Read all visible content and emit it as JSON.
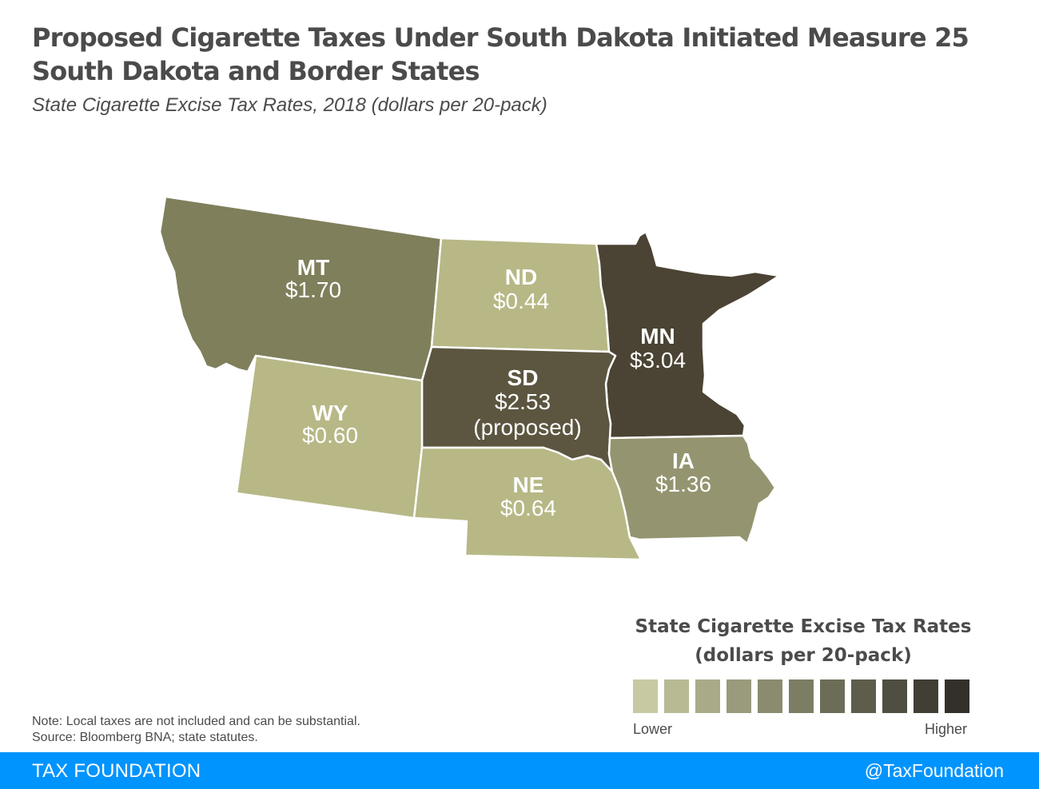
{
  "header": {
    "title_line1": "Proposed Cigarette Taxes Under South Dakota Initiated Measure 25",
    "title_line2": "South Dakota and Border States",
    "subtitle": "State Cigarette Excise Tax Rates, 2018 (dollars per 20-pack)"
  },
  "map": {
    "states": [
      {
        "abbr": "MT",
        "rate": "$1.70",
        "note": "",
        "color": "#807f5c"
      },
      {
        "abbr": "ND",
        "rate": "$0.44",
        "note": "",
        "color": "#b7b886"
      },
      {
        "abbr": "MN",
        "rate": "$3.04",
        "note": "",
        "color": "#4b4333"
      },
      {
        "abbr": "SD",
        "rate": "$2.53",
        "note": "(proposed)",
        "color": "#5c5640"
      },
      {
        "abbr": "WY",
        "rate": "$0.60",
        "note": "",
        "color": "#b7b886"
      },
      {
        "abbr": "NE",
        "rate": "$0.64",
        "note": "",
        "color": "#b7b886"
      },
      {
        "abbr": "IA",
        "rate": "$1.36",
        "note": "",
        "color": "#949570"
      }
    ]
  },
  "legend": {
    "title_line1": "State Cigarette Excise Tax Rates",
    "title_line2": "(dollars per 20-pack)",
    "low_label": "Lower",
    "high_label": "Higher",
    "colors": [
      "#c7c9a2",
      "#b8ba94",
      "#a9ab88",
      "#9a9b7c",
      "#8b8c6f",
      "#7c7d63",
      "#6d6d57",
      "#5e5d4b",
      "#4f4e40",
      "#403e35",
      "#33302a"
    ]
  },
  "notes": {
    "line1": "Note: Local taxes are not included and can be substantial.",
    "line2": "Source: Bloomberg BNA; state statutes."
  },
  "footer": {
    "brand": "TAX FOUNDATION",
    "handle": "@TaxFoundation",
    "bar_color": "#0094ff"
  }
}
